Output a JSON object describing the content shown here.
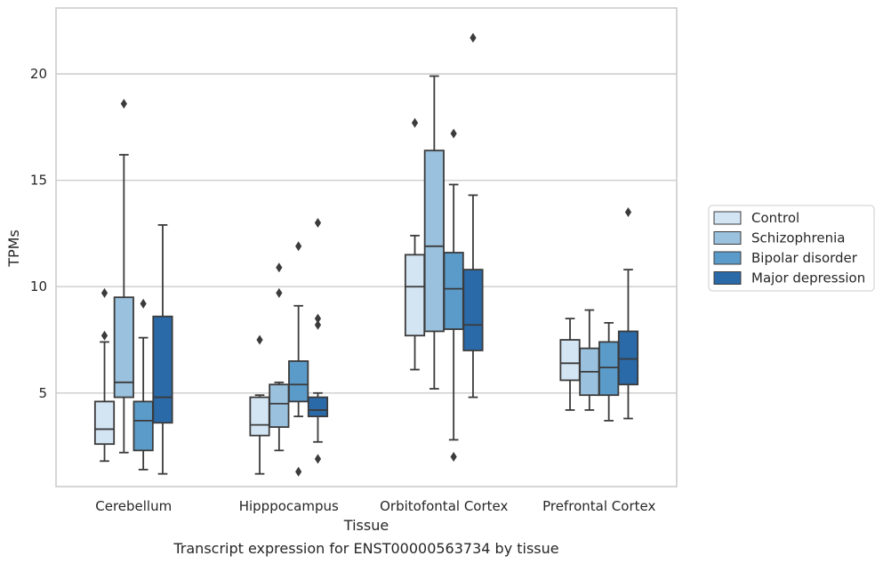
{
  "chart_data": {
    "type": "boxplot",
    "caption": "Transcript expression for ENST00000563734 by tissue",
    "xlabel": "Tissue",
    "ylabel": "TPMs",
    "ylim": [
      0.6,
      23.1
    ],
    "yticks": [
      5,
      10,
      15,
      20
    ],
    "grid": "horizontal",
    "legend_position": "right",
    "categories": [
      "Cerebellum",
      "Hipppocampus",
      "Orbitofontal Cortex",
      "Prefrontal Cortex"
    ],
    "series": [
      {
        "name": "Control",
        "color": "#d3e4f3",
        "boxes": [
          {
            "whislo": 1.8,
            "q1": 2.6,
            "med": 3.3,
            "q3": 4.6,
            "whishi": 7.4,
            "fliers": [
              7.7,
              9.7
            ]
          },
          {
            "whislo": 1.2,
            "q1": 3.0,
            "med": 3.5,
            "q3": 4.8,
            "whishi": 4.9,
            "fliers": [
              7.5
            ]
          },
          {
            "whislo": 6.1,
            "q1": 7.7,
            "med": 10.0,
            "q3": 11.5,
            "whishi": 12.4,
            "fliers": [
              17.7
            ]
          },
          {
            "whislo": 4.2,
            "q1": 5.6,
            "med": 6.4,
            "q3": 7.5,
            "whishi": 8.5,
            "fliers": []
          }
        ]
      },
      {
        "name": "Schizophrenia",
        "color": "#9ac1dd",
        "boxes": [
          {
            "whislo": 2.2,
            "q1": 4.8,
            "med": 5.5,
            "q3": 9.5,
            "whishi": 16.2,
            "fliers": [
              18.6
            ]
          },
          {
            "whislo": 2.3,
            "q1": 3.4,
            "med": 4.5,
            "q3": 5.4,
            "whishi": 5.5,
            "fliers": [
              9.7,
              10.9
            ]
          },
          {
            "whislo": 5.2,
            "q1": 7.9,
            "med": 11.9,
            "q3": 16.4,
            "whishi": 19.9,
            "fliers": []
          },
          {
            "whislo": 4.2,
            "q1": 4.9,
            "med": 6.0,
            "q3": 7.1,
            "whishi": 8.9,
            "fliers": []
          }
        ]
      },
      {
        "name": "Bipolar disorder",
        "color": "#5b9bc9",
        "boxes": [
          {
            "whislo": 1.4,
            "q1": 2.3,
            "med": 3.7,
            "q3": 4.6,
            "whishi": 7.6,
            "fliers": [
              9.2
            ]
          },
          {
            "whislo": 3.9,
            "q1": 4.6,
            "med": 5.4,
            "q3": 6.5,
            "whishi": 9.1,
            "fliers": [
              1.3,
              11.9
            ]
          },
          {
            "whislo": 2.8,
            "q1": 8.0,
            "med": 9.9,
            "q3": 11.6,
            "whishi": 14.8,
            "fliers": [
              2.0,
              17.2
            ]
          },
          {
            "whislo": 3.7,
            "q1": 4.9,
            "med": 6.2,
            "q3": 7.4,
            "whishi": 8.3,
            "fliers": []
          }
        ]
      },
      {
        "name": "Major depression",
        "color": "#2a6aa9",
        "boxes": [
          {
            "whislo": 1.2,
            "q1": 3.6,
            "med": 4.8,
            "q3": 8.6,
            "whishi": 12.9,
            "fliers": []
          },
          {
            "whislo": 2.7,
            "q1": 3.9,
            "med": 4.2,
            "q3": 4.8,
            "whishi": 5.0,
            "fliers": [
              1.9,
              8.2,
              8.5,
              13.0
            ]
          },
          {
            "whislo": 4.8,
            "q1": 7.0,
            "med": 8.2,
            "q3": 10.8,
            "whishi": 14.3,
            "fliers": [
              21.7
            ]
          },
          {
            "whislo": 3.8,
            "q1": 5.4,
            "med": 6.6,
            "q3": 7.9,
            "whishi": 10.8,
            "fliers": [
              13.5
            ]
          }
        ]
      }
    ]
  }
}
